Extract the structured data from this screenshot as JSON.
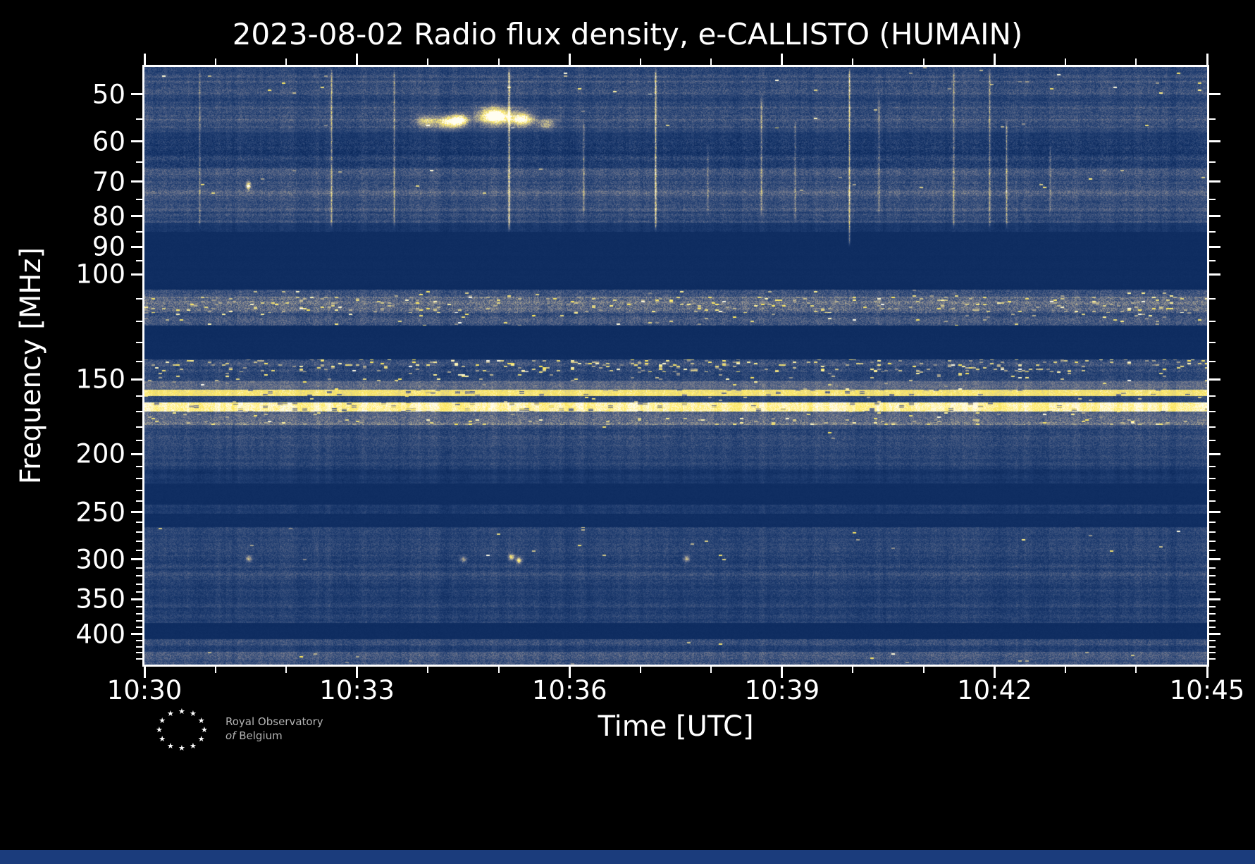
{
  "chart_data": {
    "type": "heatmap",
    "title": "2023-08-02 Radio flux density, e-CALLISTO (HUMAIN)",
    "xlabel": "Time [UTC]",
    "ylabel": "Frequency [MHz]",
    "x_range_utc": [
      "10:30",
      "10:45"
    ],
    "x_tick_labels": [
      "10:30",
      "10:33",
      "10:36",
      "10:39",
      "10:42",
      "10:45"
    ],
    "x_minor_divisions": 15,
    "y_scale": "log",
    "y_range_mhz": [
      45,
      450
    ],
    "y_tick_labels": [
      50,
      60,
      70,
      80,
      90,
      100,
      150,
      200,
      250,
      300,
      350,
      400
    ],
    "y_minor_ticks": [
      55,
      65,
      75,
      85,
      95,
      110,
      120,
      130,
      140,
      160,
      170,
      180,
      190,
      210,
      220,
      230,
      240,
      260,
      270,
      280,
      290,
      310,
      320,
      330,
      340,
      360,
      370,
      380,
      390,
      410,
      420,
      430,
      440
    ],
    "colormap_stops": [
      [
        0.0,
        "#0c2a5e"
      ],
      [
        0.18,
        "#1e3c70"
      ],
      [
        0.35,
        "#41567f"
      ],
      [
        0.5,
        "#6d748b"
      ],
      [
        0.62,
        "#9d9a8d"
      ],
      [
        0.72,
        "#c3ba92"
      ],
      [
        0.82,
        "#e8da7f"
      ],
      [
        0.9,
        "#ffe95c"
      ],
      [
        1.0,
        "#fffdf0"
      ]
    ],
    "band_columns": [
      "f_low_mhz",
      "f_high_mhz",
      "base_intensity",
      "stripe_amp",
      "noise_amp",
      "yellow_dash_density"
    ],
    "bands": [
      [
        45,
        47.5,
        0.3,
        0.1,
        0.22,
        0.005
      ],
      [
        47.5,
        50,
        0.36,
        0.1,
        0.24,
        0.005
      ],
      [
        50,
        52.5,
        0.26,
        0.1,
        0.22,
        0
      ],
      [
        52.5,
        57,
        0.3,
        0.12,
        0.24,
        0.003
      ],
      [
        57,
        59.5,
        0.2,
        0.08,
        0.18,
        0
      ],
      [
        59.5,
        63,
        0.16,
        0.08,
        0.26,
        0
      ],
      [
        63,
        66.5,
        0.2,
        0.08,
        0.26,
        0
      ],
      [
        66.5,
        71,
        0.32,
        0.1,
        0.24,
        0.002
      ],
      [
        71,
        74,
        0.38,
        0.1,
        0.24,
        0.002
      ],
      [
        74,
        78,
        0.3,
        0.1,
        0.22,
        0
      ],
      [
        78,
        82,
        0.3,
        0.12,
        0.22,
        0
      ],
      [
        82,
        85,
        0.14,
        0.06,
        0.12,
        0
      ],
      [
        85,
        106,
        0.04,
        0.01,
        0.03,
        0
      ],
      [
        106,
        109,
        0.3,
        0.06,
        0.25,
        0.02
      ],
      [
        109,
        116,
        0.42,
        0.08,
        0.3,
        0.07
      ],
      [
        116,
        122,
        0.32,
        0.06,
        0.26,
        0.02
      ],
      [
        122,
        139,
        0.04,
        0.01,
        0.03,
        0
      ],
      [
        139,
        146,
        0.3,
        0.08,
        0.26,
        0.09
      ],
      [
        146,
        151,
        0.24,
        0.06,
        0.22,
        0.03
      ],
      [
        151,
        156,
        0.44,
        0.05,
        0.2,
        0.01
      ],
      [
        156,
        160,
        0.88,
        0.02,
        0.12,
        0
      ],
      [
        160,
        164,
        0.24,
        0.06,
        0.2,
        0.01
      ],
      [
        164,
        170,
        0.95,
        0.01,
        0.08,
        0
      ],
      [
        170,
        175,
        0.42,
        0.06,
        0.24,
        0.02
      ],
      [
        175,
        179,
        0.48,
        0.06,
        0.28,
        0.08
      ],
      [
        179,
        190,
        0.26,
        0.08,
        0.22,
        0.002
      ],
      [
        190,
        200,
        0.24,
        0.08,
        0.2,
        0
      ],
      [
        200,
        212,
        0.22,
        0.07,
        0.18,
        0
      ],
      [
        212,
        224,
        0.12,
        0.05,
        0.12,
        0
      ],
      [
        224,
        243,
        0.04,
        0.01,
        0.03,
        0
      ],
      [
        243,
        252,
        0.17,
        0.05,
        0.14,
        0
      ],
      [
        252,
        265,
        0.05,
        0.01,
        0.04,
        0
      ],
      [
        265,
        282,
        0.22,
        0.08,
        0.18,
        0.002
      ],
      [
        282,
        305,
        0.24,
        0.08,
        0.2,
        0.003
      ],
      [
        305,
        330,
        0.24,
        0.09,
        0.2,
        0
      ],
      [
        330,
        345,
        0.2,
        0.07,
        0.18,
        0
      ],
      [
        345,
        362,
        0.23,
        0.08,
        0.18,
        0
      ],
      [
        362,
        383,
        0.21,
        0.07,
        0.18,
        0
      ],
      [
        383,
        408,
        0.04,
        0.01,
        0.03,
        0
      ],
      [
        408,
        418,
        0.27,
        0.06,
        0.22,
        0.004
      ],
      [
        418,
        428,
        0.22,
        0.06,
        0.18,
        0
      ],
      [
        428,
        450,
        0.33,
        0.08,
        0.24,
        0.008
      ]
    ],
    "line_columns": [
      "time_frac",
      "f_low_mhz",
      "f_high_mhz",
      "strength"
    ],
    "vertical_interference_lines": [
      [
        0.052,
        45,
        84,
        0.45
      ],
      [
        0.176,
        45,
        84,
        0.6
      ],
      [
        0.235,
        45,
        84,
        0.5
      ],
      [
        0.343,
        44,
        85,
        0.85
      ],
      [
        0.413,
        55,
        80,
        0.45
      ],
      [
        0.481,
        45,
        85,
        0.8
      ],
      [
        0.53,
        60,
        80,
        0.3
      ],
      [
        0.58,
        50,
        80,
        0.45
      ],
      [
        0.612,
        55,
        82,
        0.4
      ],
      [
        0.663,
        44,
        90,
        0.75
      ],
      [
        0.691,
        50,
        80,
        0.35
      ],
      [
        0.761,
        45,
        84,
        0.5
      ],
      [
        0.795,
        45,
        84,
        0.55
      ],
      [
        0.811,
        55,
        84,
        0.6
      ],
      [
        0.852,
        60,
        80,
        0.3
      ]
    ],
    "feature_columns": [
      "time_frac",
      "f_mhz",
      "time_sigma_frac",
      "f_sigma_mhz",
      "strength"
    ],
    "emission_features": [
      [
        0.0975,
        71,
        0.0015,
        0.8,
        0.7
      ],
      [
        0.265,
        55.5,
        0.006,
        0.9,
        0.5
      ],
      [
        0.285,
        55.6,
        0.007,
        1.0,
        0.75
      ],
      [
        0.297,
        55.2,
        0.005,
        0.9,
        0.8
      ],
      [
        0.33,
        54.3,
        0.011,
        1.2,
        1.0
      ],
      [
        0.356,
        55.0,
        0.007,
        1.0,
        0.75
      ],
      [
        0.378,
        56.0,
        0.005,
        0.8,
        0.45
      ],
      [
        0.098,
        299,
        0.002,
        2.5,
        0.5
      ],
      [
        0.3,
        300,
        0.002,
        2.5,
        0.5
      ],
      [
        0.345,
        297,
        0.002,
        2.5,
        0.65
      ],
      [
        0.352,
        301,
        0.002,
        2.5,
        0.7
      ],
      [
        0.51,
        299,
        0.002,
        2.5,
        0.55
      ]
    ]
  },
  "logo": {
    "line1": "Royal Observatory",
    "line2a": "of",
    "line2b": "Belgium",
    "star": "★"
  },
  "colors": {
    "background": "#000000",
    "axes": "#ffffff",
    "text": "#ffffff",
    "logo_text": "#b4b4b4",
    "bottom_strip": "#1b3c7c"
  }
}
